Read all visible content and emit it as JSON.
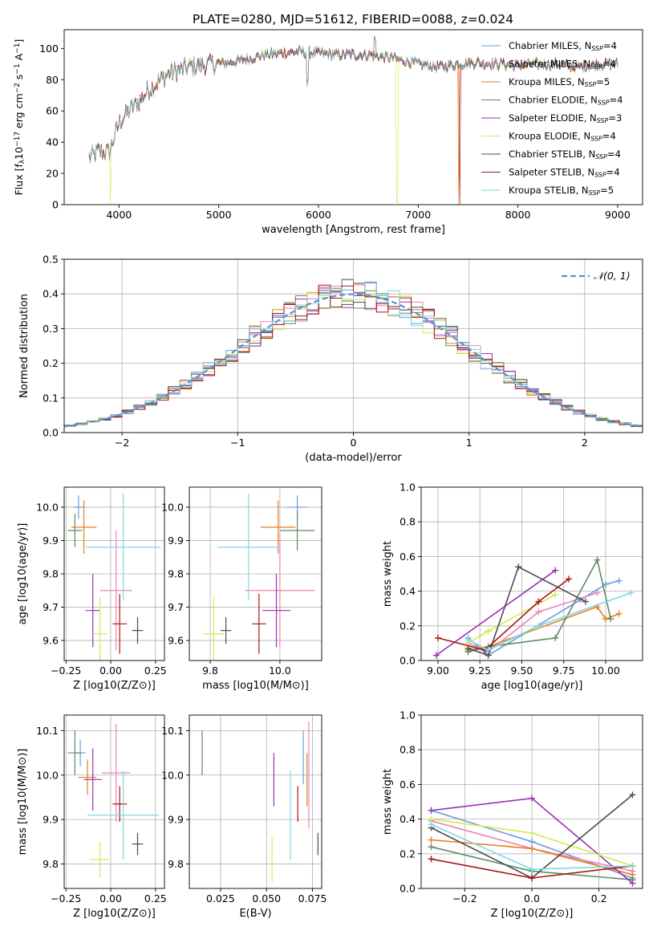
{
  "title": "PLATE=0280, MJD=51612, FIBERID=0088, z=0.024",
  "colors": {
    "Chabrier MILES": "#6a9be0",
    "Salpeter MILES": "#ee82b8",
    "Kroupa MILES": "#e77d1e",
    "Chabrier ELODIE": "#5e8a63",
    "Salpeter ELODIE": "#9a31b5",
    "Kroupa ELODIE": "#d4ea4d",
    "Chabrier STELIB": "#4d4d4d",
    "Salpeter STELIB": "#ad1313",
    "Kroupa STELIB": "#7fd9e3"
  },
  "chart_data": [
    {
      "id": "spectrum",
      "type": "line",
      "xlabel": "wavelength [Angstrom, rest frame]",
      "ylabel_parts": [
        "Flux [f",
        "λ",
        "10",
        "−17",
        " erg cm",
        "−2",
        " s",
        "−1",
        " A",
        "−1",
        "]"
      ],
      "xlim": [
        3450,
        9250
      ],
      "ylim": [
        0,
        112
      ],
      "xticks": [
        4000,
        5000,
        6000,
        7000,
        8000,
        9000
      ],
      "yticks": [
        0,
        20,
        40,
        60,
        80,
        100
      ],
      "continuum": [
        [
          3700,
          30
        ],
        [
          3800,
          34
        ],
        [
          3900,
          33
        ],
        [
          4000,
          52
        ],
        [
          4100,
          60
        ],
        [
          4200,
          66
        ],
        [
          4300,
          74
        ],
        [
          4400,
          79
        ],
        [
          4500,
          84
        ],
        [
          4600,
          86
        ],
        [
          4700,
          88
        ],
        [
          4800,
          89
        ],
        [
          4900,
          90
        ],
        [
          5000,
          90
        ],
        [
          5200,
          92
        ],
        [
          5400,
          95
        ],
        [
          5600,
          97
        ],
        [
          5800,
          98
        ],
        [
          6000,
          97
        ],
        [
          6200,
          96
        ],
        [
          6500,
          96
        ],
        [
          6800,
          93
        ],
        [
          7000,
          90
        ],
        [
          7200,
          88
        ],
        [
          7400,
          90
        ],
        [
          7600,
          91
        ],
        [
          7800,
          90
        ],
        [
          8000,
          89
        ],
        [
          8200,
          90
        ],
        [
          8400,
          90
        ],
        [
          8600,
          88
        ],
        [
          8800,
          90
        ],
        [
          9000,
          90
        ]
      ],
      "legend": [
        {
          "label": "Chabrier MILES",
          "nssp": "4"
        },
        {
          "label": "Salpeter MILES",
          "nssp": "4"
        },
        {
          "label": "Kroupa MILES",
          "nssp": "5"
        },
        {
          "label": "Chabrier ELODIE",
          "nssp": "4"
        },
        {
          "label": "Salpeter ELODIE",
          "nssp": "3"
        },
        {
          "label": "Kroupa ELODIE",
          "nssp": "4"
        },
        {
          "label": "Chabrier STELIB",
          "nssp": "4"
        },
        {
          "label": "Salpeter STELIB",
          "nssp": "4"
        },
        {
          "label": "Kroupa STELIB",
          "nssp": "5"
        }
      ],
      "legend_loc": "upper right"
    },
    {
      "id": "residuals",
      "type": "histogram",
      "xlabel": "(data-model)/error",
      "ylabel": "Normed distribution",
      "xlim": [
        -2.5,
        2.5
      ],
      "ylim": [
        0,
        0.5
      ],
      "xticks": [
        -2,
        -1,
        0,
        1,
        2
      ],
      "yticks": [
        0.0,
        0.1,
        0.2,
        0.3,
        0.4,
        0.5
      ],
      "bin_width": 0.1,
      "bin_start": -2.5,
      "reference_label": "𝒩(0, 1)",
      "legend_loc": "upper right"
    },
    {
      "id": "age_vs_Z",
      "type": "scatter",
      "xlabel": "Z [log10(Z/Z⊙)]",
      "ylabel": "age  [log10(age/yr)]",
      "xlim": [
        -0.26,
        0.3
      ],
      "ylim": [
        9.54,
        10.06
      ],
      "xticks": [
        -0.25,
        0.0,
        0.25
      ],
      "yticks": [
        9.6,
        9.7,
        9.8,
        9.9,
        10.0
      ],
      "points": [
        {
          "series": "Chabrier MILES",
          "x": -0.18,
          "xerr": 0.03,
          "y": 10.0,
          "yerr": 0.035
        },
        {
          "series": "Salpeter MILES",
          "x": 0.03,
          "xerr": 0.09,
          "y": 9.75,
          "yerr": 0.18
        },
        {
          "series": "Kroupa MILES",
          "x": -0.15,
          "xerr": 0.07,
          "y": 9.94,
          "yerr": 0.08
        },
        {
          "series": "Chabrier ELODIE",
          "x": -0.2,
          "xerr": 0.04,
          "y": 9.93,
          "yerr": 0.05
        },
        {
          "series": "Salpeter ELODIE",
          "x": -0.1,
          "xerr": 0.04,
          "y": 9.69,
          "yerr": 0.11
        },
        {
          "series": "Kroupa ELODIE",
          "x": -0.06,
          "xerr": 0.04,
          "y": 9.62,
          "yerr": 0.11
        },
        {
          "series": "Chabrier STELIB",
          "x": 0.15,
          "xerr": 0.03,
          "y": 9.63,
          "yerr": 0.04
        },
        {
          "series": "Salpeter STELIB",
          "x": 0.05,
          "xerr": 0.04,
          "y": 9.65,
          "yerr": 0.09
        },
        {
          "series": "Kroupa STELIB",
          "x": 0.07,
          "xerr": 0.21,
          "y": 9.88,
          "yerr": 0.16
        }
      ]
    },
    {
      "id": "age_vs_mass",
      "type": "scatter",
      "xlabel": "mass [log10(M/M⊙)]",
      "ylabel": "",
      "xlim": [
        9.74,
        10.12
      ],
      "ylim": [
        9.54,
        10.06
      ],
      "xticks": [
        9.8,
        10.0
      ],
      "yticks": [
        9.6,
        9.7,
        9.8,
        9.9,
        10.0
      ],
      "points": [
        {
          "series": "Chabrier MILES",
          "x": 10.05,
          "xerr": 0.03,
          "y": 10.0,
          "yerr": 0.035
        },
        {
          "series": "Salpeter MILES",
          "x": 10.0,
          "xerr": 0.1,
          "y": 9.75,
          "yerr": 0.17
        },
        {
          "series": "Kroupa MILES",
          "x": 9.995,
          "xerr": 0.05,
          "y": 9.94,
          "yerr": 0.08
        },
        {
          "series": "Chabrier ELODIE",
          "x": 10.05,
          "xerr": 0.05,
          "y": 9.93,
          "yerr": 0.06
        },
        {
          "series": "Salpeter ELODIE",
          "x": 9.99,
          "xerr": 0.04,
          "y": 9.69,
          "yerr": 0.11
        },
        {
          "series": "Kroupa ELODIE",
          "x": 9.81,
          "xerr": 0.03,
          "y": 9.62,
          "yerr": 0.11
        },
        {
          "series": "Chabrier STELIB",
          "x": 9.845,
          "xerr": 0.015,
          "y": 9.63,
          "yerr": 0.04
        },
        {
          "series": "Salpeter STELIB",
          "x": 9.94,
          "xerr": 0.02,
          "y": 9.65,
          "yerr": 0.09
        },
        {
          "series": "Kroupa STELIB",
          "x": 9.91,
          "xerr": 0.09,
          "y": 9.88,
          "yerr": 0.16
        }
      ]
    },
    {
      "id": "weight_vs_age",
      "type": "line",
      "xlabel": "age  [log10(age/yr)]",
      "ylabel": "mass weight",
      "xlim": [
        8.9,
        10.22
      ],
      "ylim": [
        0,
        1.0
      ],
      "xticks": [
        9.0,
        9.25,
        9.5,
        9.75,
        10.0
      ],
      "yticks": [
        0.0,
        0.2,
        0.4,
        0.6,
        0.8,
        1.0
      ],
      "series": [
        {
          "name": "Chabrier MILES",
          "points": [
            [
              9.18,
              0.13
            ],
            [
              9.3,
              0.03
            ],
            [
              9.85,
              0.35
            ],
            [
              10.0,
              0.44
            ],
            [
              10.08,
              0.46
            ]
          ]
        },
        {
          "name": "Salpeter MILES",
          "points": [
            [
              9.18,
              0.1
            ],
            [
              9.3,
              0.05
            ],
            [
              9.6,
              0.28
            ],
            [
              9.95,
              0.39
            ]
          ]
        },
        {
          "name": "Kroupa MILES",
          "points": [
            [
              9.18,
              0.06
            ],
            [
              9.3,
              0.08
            ],
            [
              9.95,
              0.31
            ],
            [
              10.0,
              0.24
            ],
            [
              10.08,
              0.27
            ]
          ]
        },
        {
          "name": "Chabrier ELODIE",
          "points": [
            [
              9.18,
              0.05
            ],
            [
              9.3,
              0.08
            ],
            [
              9.7,
              0.13
            ],
            [
              9.95,
              0.58
            ],
            [
              10.03,
              0.24
            ]
          ]
        },
        {
          "name": "Salpeter ELODIE",
          "points": [
            [
              8.99,
              0.03
            ],
            [
              9.7,
              0.52
            ]
          ]
        },
        {
          "name": "Kroupa ELODIE",
          "points": [
            [
              9.18,
              0.1
            ],
            [
              9.3,
              0.17
            ],
            [
              9.7,
              0.38
            ]
          ]
        },
        {
          "name": "Chabrier STELIB",
          "points": [
            [
              9.18,
              0.07
            ],
            [
              9.3,
              0.03
            ],
            [
              9.48,
              0.54
            ],
            [
              9.88,
              0.34
            ]
          ]
        },
        {
          "name": "Salpeter STELIB",
          "points": [
            [
              9.0,
              0.13
            ],
            [
              9.28,
              0.06
            ],
            [
              9.6,
              0.34
            ],
            [
              9.78,
              0.47
            ]
          ]
        },
        {
          "name": "Kroupa STELIB",
          "points": [
            [
              9.18,
              0.12
            ],
            [
              9.3,
              0.06
            ],
            [
              9.6,
              0.2
            ],
            [
              10.15,
              0.39
            ]
          ]
        }
      ]
    },
    {
      "id": "mass_vs_Z",
      "type": "scatter",
      "xlabel": "Z [log10(Z/Z⊙)]",
      "ylabel": "mass [log10(M/M⊙)]",
      "xlim": [
        -0.26,
        0.3
      ],
      "ylim": [
        9.745,
        10.135
      ],
      "xticks": [
        -0.25,
        0.0,
        0.25
      ],
      "yticks": [
        9.8,
        9.9,
        10.0,
        10.1
      ],
      "points": [
        {
          "series": "Chabrier MILES",
          "x": -0.17,
          "xerr": 0.03,
          "y": 10.05,
          "yerr": 0.03
        },
        {
          "series": "Salpeter MILES",
          "x": 0.03,
          "xerr": 0.08,
          "y": 10.005,
          "yerr": 0.11
        },
        {
          "series": "Kroupa MILES",
          "x": -0.13,
          "xerr": 0.05,
          "y": 9.995,
          "yerr": 0.04
        },
        {
          "series": "Chabrier ELODIE",
          "x": -0.2,
          "xerr": 0.04,
          "y": 10.05,
          "yerr": 0.05
        },
        {
          "series": "Salpeter ELODIE",
          "x": -0.1,
          "xerr": 0.05,
          "y": 9.99,
          "yerr": 0.07
        },
        {
          "series": "Kroupa ELODIE",
          "x": -0.06,
          "xerr": 0.05,
          "y": 9.81,
          "yerr": 0.04
        },
        {
          "series": "Chabrier STELIB",
          "x": 0.15,
          "xerr": 0.03,
          "y": 9.845,
          "yerr": 0.025
        },
        {
          "series": "Salpeter STELIB",
          "x": 0.05,
          "xerr": 0.04,
          "y": 9.935,
          "yerr": 0.04
        },
        {
          "series": "Kroupa STELIB",
          "x": 0.07,
          "xerr": 0.2,
          "y": 9.91,
          "yerr": 0.1
        }
      ]
    },
    {
      "id": "mass_vs_ebv",
      "type": "scatter",
      "xlabel": "E(B-V)",
      "ylabel": "",
      "xlim": [
        0.008,
        0.08
      ],
      "ylim": [
        9.745,
        10.135
      ],
      "xticks": [
        0.025,
        0.05,
        0.075
      ],
      "yticks": [
        9.8,
        9.9,
        10.0,
        10.1
      ],
      "points": [
        {
          "series": "Chabrier MILES",
          "x": 0.07,
          "xerr": 0,
          "y": 10.04,
          "yerr": 0.06
        },
        {
          "series": "Salpeter MILES",
          "x": 0.073,
          "xerr": 0,
          "y": 10.0,
          "yerr": 0.12
        },
        {
          "series": "Kroupa MILES",
          "x": 0.072,
          "xerr": 0,
          "y": 9.99,
          "yerr": 0.06
        },
        {
          "series": "Chabrier ELODIE",
          "x": 0.015,
          "xerr": 0,
          "y": 10.05,
          "yerr": 0.05
        },
        {
          "series": "Salpeter ELODIE",
          "x": 0.054,
          "xerr": 0,
          "y": 9.99,
          "yerr": 0.06
        },
        {
          "series": "Kroupa ELODIE",
          "x": 0.053,
          "xerr": 0,
          "y": 9.81,
          "yerr": 0.05
        },
        {
          "series": "Chabrier STELIB",
          "x": 0.078,
          "xerr": 0,
          "y": 9.845,
          "yerr": 0.025
        },
        {
          "series": "Salpeter STELIB",
          "x": 0.067,
          "xerr": 0,
          "y": 9.935,
          "yerr": 0.04
        },
        {
          "series": "Kroupa STELIB",
          "x": 0.063,
          "xerr": 0,
          "y": 9.91,
          "yerr": 0.1
        }
      ]
    },
    {
      "id": "weight_vs_Z",
      "type": "line",
      "xlabel": "Z [log10(Z/Z⊙)]",
      "ylabel": "mass weight",
      "xlim": [
        -0.33,
        0.33
      ],
      "ylim": [
        0,
        1.0
      ],
      "xticks": [
        -0.2,
        0.0,
        0.2
      ],
      "yticks": [
        0.0,
        0.2,
        0.4,
        0.6,
        0.8,
        1.0
      ],
      "series": [
        {
          "name": "Chabrier MILES",
          "points": [
            [
              -0.3,
              0.45
            ],
            [
              0.0,
              0.27
            ],
            [
              0.3,
              0.06
            ]
          ]
        },
        {
          "name": "Salpeter MILES",
          "points": [
            [
              -0.3,
              0.39
            ],
            [
              0.0,
              0.23
            ],
            [
              0.3,
              0.1
            ]
          ]
        },
        {
          "name": "Kroupa MILES",
          "points": [
            [
              -0.3,
              0.28
            ],
            [
              0.0,
              0.23
            ],
            [
              0.3,
              0.08
            ]
          ]
        },
        {
          "name": "Chabrier ELODIE",
          "points": [
            [
              -0.3,
              0.24
            ],
            [
              0.0,
              0.1
            ],
            [
              0.3,
              0.05
            ]
          ]
        },
        {
          "name": "Salpeter ELODIE",
          "points": [
            [
              -0.3,
              0.45
            ],
            [
              0.0,
              0.52
            ],
            [
              0.3,
              0.03
            ]
          ]
        },
        {
          "name": "Kroupa ELODIE",
          "points": [
            [
              -0.3,
              0.4
            ],
            [
              0.0,
              0.32
            ],
            [
              0.3,
              0.13
            ]
          ]
        },
        {
          "name": "Chabrier STELIB",
          "points": [
            [
              -0.3,
              0.35
            ],
            [
              0.0,
              0.06
            ],
            [
              0.3,
              0.54
            ]
          ]
        },
        {
          "name": "Salpeter STELIB",
          "points": [
            [
              -0.3,
              0.17
            ],
            [
              0.0,
              0.06
            ],
            [
              0.3,
              0.13
            ]
          ]
        },
        {
          "name": "Kroupa STELIB",
          "points": [
            [
              -0.3,
              0.37
            ],
            [
              0.0,
              0.11
            ],
            [
              0.3,
              0.13
            ]
          ]
        }
      ]
    }
  ]
}
